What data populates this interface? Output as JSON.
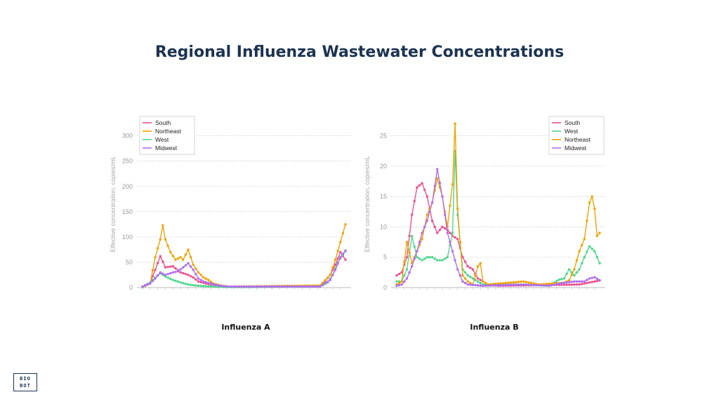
{
  "title": "Regional Influenza Wastewater Concentrations",
  "logo": {
    "line1": "BIO",
    "line2": "BOT"
  },
  "colors": {
    "South": "#ee4f8f",
    "Northeast": "#f0a202",
    "West": "#4fd68e",
    "Midwest": "#b06df2"
  },
  "chart_data": [
    {
      "type": "line",
      "title": "Influenza A",
      "ylabel": "Effective concentration, copies/mL",
      "ylim": [
        0,
        330
      ],
      "yticks": [
        0,
        50,
        100,
        150,
        200,
        250,
        300
      ],
      "grid": true,
      "legend": "top-left",
      "legend_order": [
        "South",
        "Northeast",
        "West",
        "Midwest"
      ],
      "x_count": 81,
      "series": [
        {
          "name": "South",
          "anchors": [
            [
              0,
              2
            ],
            [
              3,
              10
            ],
            [
              5,
              35
            ],
            [
              7,
              62
            ],
            [
              9,
              40
            ],
            [
              12,
              42
            ],
            [
              15,
              30
            ],
            [
              18,
              25
            ],
            [
              20,
              20
            ],
            [
              22,
              12
            ],
            [
              25,
              8
            ],
            [
              28,
              5
            ],
            [
              30,
              3
            ],
            [
              33,
              2
            ],
            [
              36,
              1
            ],
            [
              70,
              2
            ],
            [
              74,
              25
            ],
            [
              76,
              45
            ],
            [
              78,
              70
            ],
            [
              80,
              55
            ],
            [
              83,
              35
            ],
            [
              86,
              30
            ],
            [
              89,
              70
            ],
            [
              91,
              100
            ],
            [
              93,
              70
            ],
            [
              95,
              50
            ],
            [
              96,
              38
            ]
          ]
        },
        {
          "name": "Northeast",
          "anchors": [
            [
              0,
              1
            ],
            [
              3,
              8
            ],
            [
              5,
              60
            ],
            [
              7,
              95
            ],
            [
              8,
              123
            ],
            [
              9,
              95
            ],
            [
              11,
              70
            ],
            [
              13,
              55
            ],
            [
              15,
              60
            ],
            [
              16,
              55
            ],
            [
              18,
              75
            ],
            [
              20,
              45
            ],
            [
              22,
              30
            ],
            [
              24,
              20
            ],
            [
              26,
              15
            ],
            [
              28,
              8
            ],
            [
              31,
              4
            ],
            [
              34,
              2
            ],
            [
              70,
              4
            ],
            [
              74,
              25
            ],
            [
              76,
              55
            ],
            [
              78,
              90
            ],
            [
              80,
              125
            ],
            [
              82,
              120
            ],
            [
              84,
              190
            ],
            [
              86,
              320
            ],
            [
              88,
              295
            ],
            [
              90,
              220
            ],
            [
              92,
              130
            ],
            [
              94,
              75
            ],
            [
              96,
              64
            ]
          ]
        },
        {
          "name": "West",
          "anchors": [
            [
              0,
              1
            ],
            [
              3,
              10
            ],
            [
              5,
              20
            ],
            [
              7,
              28
            ],
            [
              9,
              22
            ],
            [
              12,
              15
            ],
            [
              15,
              10
            ],
            [
              18,
              6
            ],
            [
              21,
              4
            ],
            [
              24,
              3
            ],
            [
              28,
              2
            ],
            [
              33,
              1
            ],
            [
              70,
              2
            ],
            [
              73,
              10
            ],
            [
              75,
              25
            ],
            [
              77,
              50
            ],
            [
              80,
              72
            ],
            [
              83,
              40
            ],
            [
              86,
              58
            ],
            [
              89,
              48
            ],
            [
              91,
              40
            ],
            [
              93,
              30
            ],
            [
              95,
              20
            ]
          ]
        },
        {
          "name": "Midwest",
          "anchors": [
            [
              0,
              2
            ],
            [
              3,
              8
            ],
            [
              5,
              18
            ],
            [
              7,
              30
            ],
            [
              9,
              25
            ],
            [
              12,
              30
            ],
            [
              14,
              32
            ],
            [
              16,
              40
            ],
            [
              18,
              48
            ],
            [
              20,
              35
            ],
            [
              22,
              18
            ],
            [
              24,
              12
            ],
            [
              27,
              8
            ],
            [
              30,
              4
            ],
            [
              34,
              2
            ],
            [
              70,
              2
            ],
            [
              74,
              15
            ],
            [
              76,
              35
            ],
            [
              78,
              60
            ],
            [
              80,
              73
            ],
            [
              82,
              60
            ],
            [
              84,
              55
            ],
            [
              86,
              80
            ],
            [
              88,
              115
            ],
            [
              90,
              110
            ],
            [
              92,
              95
            ],
            [
              94,
              70
            ],
            [
              96,
              55
            ]
          ]
        }
      ]
    },
    {
      "type": "line",
      "title": "Influenza B",
      "ylabel": "Effective concentration, copies/mL",
      "ylim": [
        0,
        27.5
      ],
      "yticks": [
        0,
        5,
        10,
        15,
        20,
        25
      ],
      "grid": true,
      "legend": "top-right",
      "legend_order": [
        "South",
        "West",
        "Northeast",
        "Midwest"
      ],
      "x_count": 81,
      "series": [
        {
          "name": "South",
          "anchors": [
            [
              0,
              2
            ],
            [
              2,
              2.5
            ],
            [
              4,
              5
            ],
            [
              6,
              12
            ],
            [
              8,
              16.5
            ],
            [
              10,
              17.2
            ],
            [
              12,
              15
            ],
            [
              14,
              11
            ],
            [
              16,
              9
            ],
            [
              18,
              10
            ],
            [
              20,
              9.5
            ],
            [
              22,
              8.5
            ],
            [
              24,
              8
            ],
            [
              26,
              5
            ],
            [
              28,
              3.5
            ],
            [
              30,
              3
            ],
            [
              32,
              1.5
            ],
            [
              36,
              0.5
            ],
            [
              40,
              0.3
            ],
            [
              72,
              0.5
            ],
            [
              78,
              1
            ],
            [
              82,
              1.3
            ],
            [
              86,
              1
            ]
          ]
        },
        {
          "name": "West",
          "anchors": [
            [
              0,
              1
            ],
            [
              2,
              1
            ],
            [
              4,
              3
            ],
            [
              6,
              8.5
            ],
            [
              8,
              5
            ],
            [
              10,
              4.5
            ],
            [
              12,
              5
            ],
            [
              14,
              5
            ],
            [
              16,
              4.5
            ],
            [
              18,
              4.5
            ],
            [
              20,
              5
            ],
            [
              22,
              9
            ],
            [
              23,
              22.5
            ],
            [
              24,
              12
            ],
            [
              26,
              3
            ],
            [
              28,
              2
            ],
            [
              30,
              1.5
            ],
            [
              34,
              0.5
            ],
            [
              50,
              0.5
            ],
            [
              60,
              0.3
            ],
            [
              64,
              1.3
            ],
            [
              66,
              1.5
            ],
            [
              68,
              3
            ],
            [
              70,
              2
            ],
            [
              72,
              3
            ],
            [
              74,
              5
            ],
            [
              76,
              6.8
            ],
            [
              78,
              6
            ],
            [
              80,
              4
            ],
            [
              82,
              3.5
            ]
          ]
        },
        {
          "name": "Northeast",
          "anchors": [
            [
              0,
              0.5
            ],
            [
              2,
              1
            ],
            [
              4,
              7.5
            ],
            [
              6,
              4
            ],
            [
              8,
              6
            ],
            [
              10,
              8
            ],
            [
              12,
              12
            ],
            [
              14,
              14
            ],
            [
              16,
              18
            ],
            [
              18,
              15
            ],
            [
              20,
              10
            ],
            [
              22,
              17
            ],
            [
              23,
              27
            ],
            [
              24,
              13
            ],
            [
              26,
              2
            ],
            [
              28,
              1
            ],
            [
              30,
              0.5
            ],
            [
              32,
              3.5
            ],
            [
              33,
              4
            ],
            [
              34,
              1
            ],
            [
              36,
              0.5
            ],
            [
              50,
              1
            ],
            [
              56,
              0.5
            ],
            [
              66,
              0.8
            ],
            [
              68,
              1.2
            ],
            [
              70,
              3
            ],
            [
              72,
              6
            ],
            [
              74,
              8
            ],
            [
              76,
              14
            ],
            [
              77,
              15
            ],
            [
              78,
              13
            ],
            [
              79,
              8.5
            ],
            [
              80,
              9
            ],
            [
              81,
              11
            ]
          ]
        },
        {
          "name": "Midwest",
          "anchors": [
            [
              0,
              0.3
            ],
            [
              2,
              0.5
            ],
            [
              4,
              1.5
            ],
            [
              6,
              3.5
            ],
            [
              8,
              6
            ],
            [
              10,
              9
            ],
            [
              12,
              11
            ],
            [
              14,
              14
            ],
            [
              16,
              19.5
            ],
            [
              18,
              15
            ],
            [
              20,
              9
            ],
            [
              22,
              6
            ],
            [
              24,
              3
            ],
            [
              26,
              1
            ],
            [
              28,
              0.5
            ],
            [
              34,
              0.3
            ],
            [
              50,
              0.5
            ],
            [
              60,
              0.3
            ],
            [
              66,
              0.8
            ],
            [
              70,
              1
            ],
            [
              74,
              1
            ],
            [
              76,
              1.5
            ],
            [
              78,
              1.7
            ],
            [
              80,
              1.2
            ],
            [
              82,
              1.5
            ]
          ]
        }
      ]
    }
  ]
}
